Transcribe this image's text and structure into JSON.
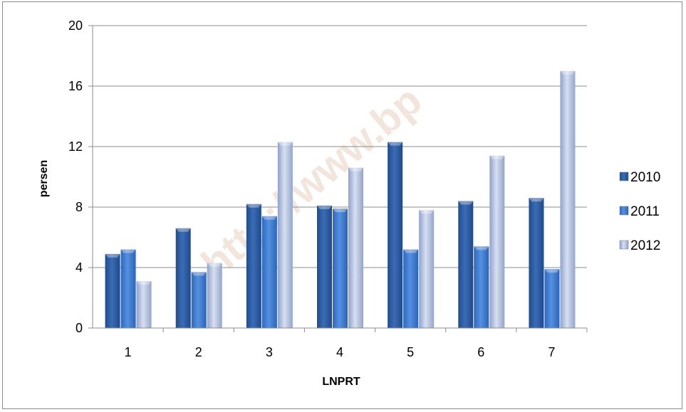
{
  "watermark": "http://www.bp",
  "colors": {
    "2010": "#2e5d9c",
    "2011": "#3d7ad1",
    "2012": "#a8b7d8"
  },
  "chart_data": {
    "type": "bar",
    "title": "",
    "xlabel": "LNPRT",
    "ylabel": "persen",
    "ylim": [
      0,
      20
    ],
    "yticks": [
      "0",
      "4",
      "8",
      "12",
      "16",
      "20"
    ],
    "grid": true,
    "legend_position": "right",
    "categories": [
      "1",
      "2",
      "3",
      "4",
      "5",
      "6",
      "7"
    ],
    "series": [
      {
        "name": "2010",
        "values": [
          4.9,
          6.6,
          8.2,
          8.1,
          12.3,
          8.4,
          8.6
        ]
      },
      {
        "name": "2011",
        "values": [
          5.2,
          3.7,
          7.4,
          7.9,
          5.2,
          5.4,
          3.9
        ]
      },
      {
        "name": "2012",
        "values": [
          3.1,
          4.3,
          12.3,
          10.6,
          7.8,
          11.4,
          17.0
        ]
      }
    ]
  }
}
